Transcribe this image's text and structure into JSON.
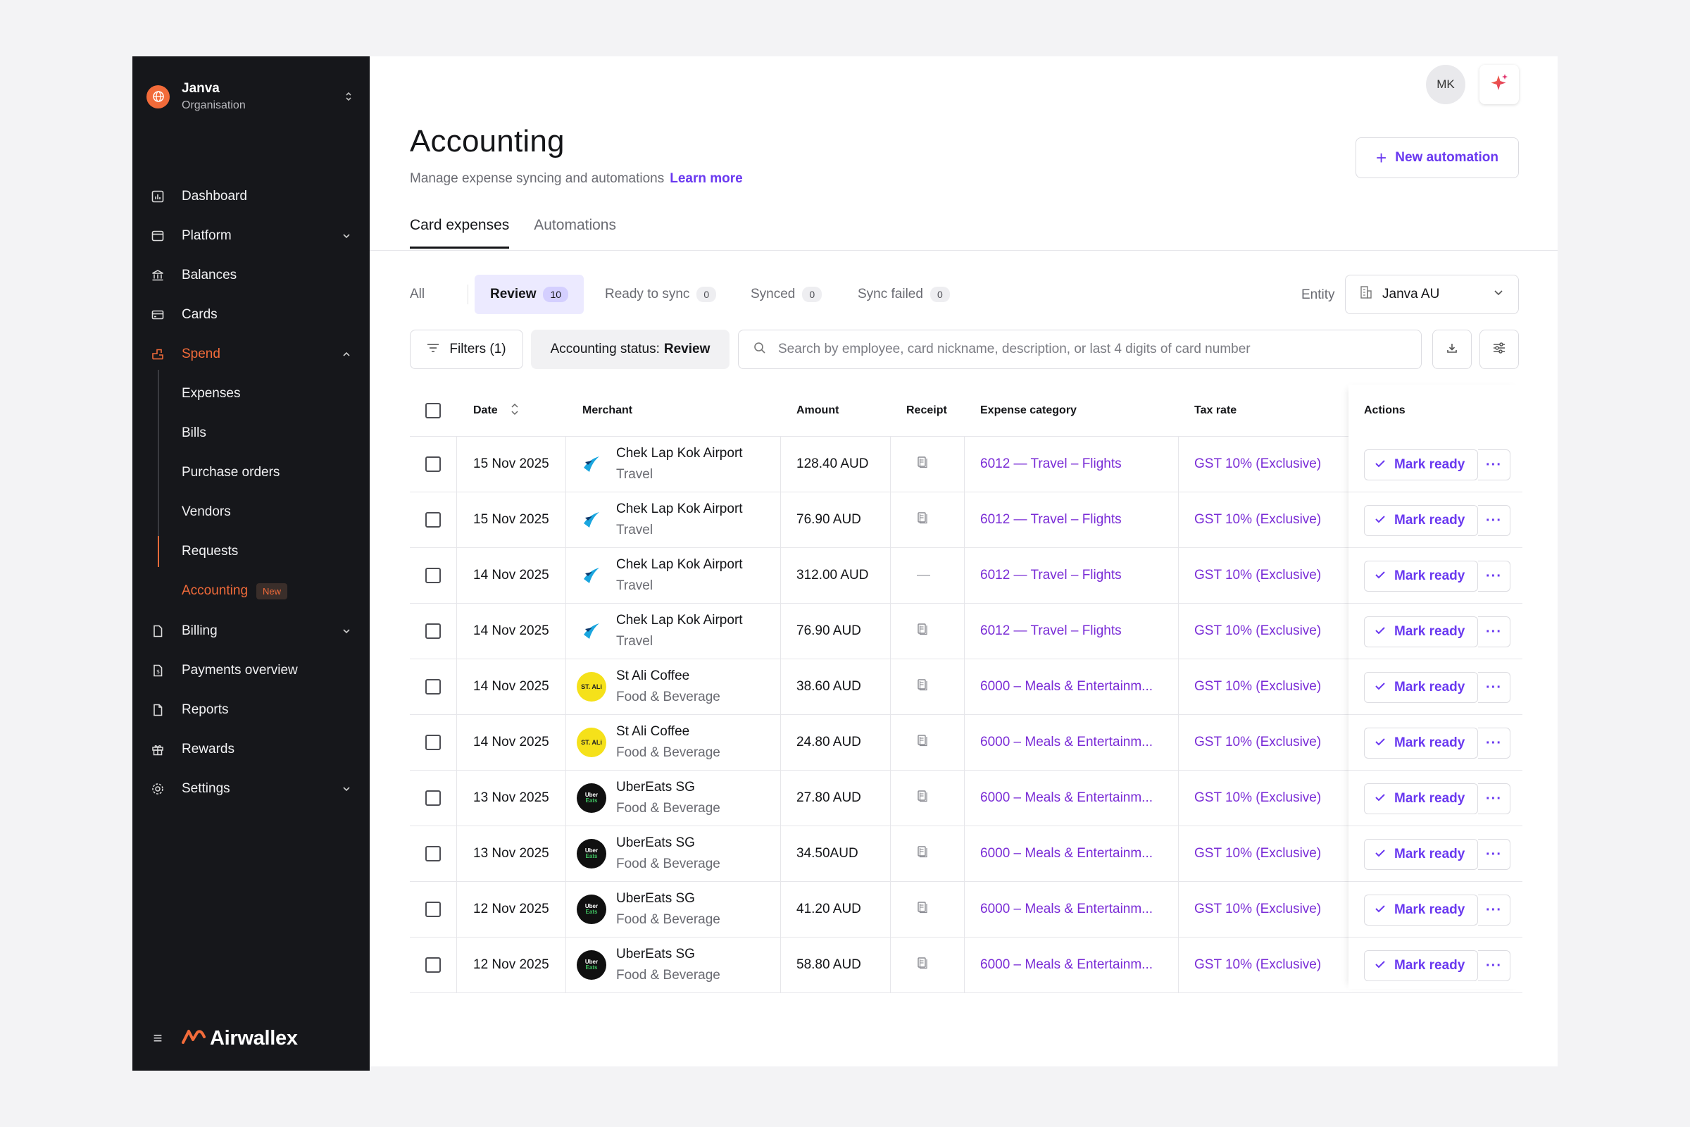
{
  "org": {
    "name": "Janva",
    "sub": "Organisation"
  },
  "nav": {
    "dashboard": "Dashboard",
    "platform": "Platform",
    "balances": "Balances",
    "cards": "Cards",
    "spend": "Spend",
    "spend_items": [
      "Expenses",
      "Bills",
      "Purchase orders",
      "Vendors",
      "Requests",
      "Accounting"
    ],
    "new_badge": "New",
    "billing": "Billing",
    "payments_overview": "Payments overview",
    "reports": "Reports",
    "rewards": "Rewards",
    "settings": "Settings"
  },
  "brand": {
    "menu_glyph": "≡",
    "wordmark": "Airwallex"
  },
  "header": {
    "avatar": "MK",
    "title": "Accounting",
    "subtitle": "Manage expense syncing and automations",
    "learn_more": "Learn more",
    "new_automation": "New automation",
    "plus": "+"
  },
  "tabs": [
    "Card expenses",
    "Automations"
  ],
  "status_tabs": [
    {
      "label": "All",
      "count": null
    },
    {
      "label": "Review",
      "count": "10"
    },
    {
      "label": "Ready to sync",
      "count": "0"
    },
    {
      "label": "Synced",
      "count": "0"
    },
    {
      "label": "Sync failed",
      "count": "0"
    }
  ],
  "entity": {
    "label": "Entity",
    "value": "Janva AU"
  },
  "toolbar": {
    "filters": "Filters (1)",
    "status_prefix": "Accounting status:",
    "status_value": "Review",
    "search_placeholder": "Search by employee, card nickname, description, or last 4 digits of card number"
  },
  "table": {
    "headers": {
      "date": "Date",
      "merchant": "Merchant",
      "amount": "Amount",
      "receipt": "Receipt",
      "category": "Expense category",
      "tax": "Tax rate",
      "actions": "Actions"
    },
    "mark_ready": "Mark ready",
    "more": "···",
    "rows": [
      {
        "date": "15 Nov 2025",
        "merchant": "Chek Lap Kok Airport",
        "mcat": "Travel",
        "logo": "airport",
        "amount": "128.40 AUD",
        "receipt": true,
        "category": "6012 — Travel – Flights",
        "tax": "GST 10% (Exclusive)"
      },
      {
        "date": "15 Nov 2025",
        "merchant": "Chek Lap Kok Airport",
        "mcat": "Travel",
        "logo": "airport",
        "amount": "76.90 AUD",
        "receipt": true,
        "category": "6012 — Travel – Flights",
        "tax": "GST 10% (Exclusive)"
      },
      {
        "date": "14 Nov 2025",
        "merchant": "Chek Lap Kok Airport",
        "mcat": "Travel",
        "logo": "airport",
        "amount": "312.00 AUD",
        "receipt": false,
        "category": "6012 — Travel – Flights",
        "tax": "GST 10% (Exclusive)"
      },
      {
        "date": "14 Nov 2025",
        "merchant": "Chek Lap Kok Airport",
        "mcat": "Travel",
        "logo": "airport",
        "amount": "76.90 AUD",
        "receipt": true,
        "category": "6012 — Travel – Flights",
        "tax": "GST 10% (Exclusive)"
      },
      {
        "date": "14 Nov 2025",
        "merchant": "St Ali Coffee",
        "mcat": "Food & Beverage",
        "logo": "stali",
        "amount": "38.60 AUD",
        "receipt": true,
        "category": "6000 – Meals & Entertainm...",
        "tax": "GST 10% (Exclusive)"
      },
      {
        "date": "14 Nov 2025",
        "merchant": "St Ali Coffee",
        "mcat": "Food & Beverage",
        "logo": "stali",
        "amount": "24.80 AUD",
        "receipt": true,
        "category": "6000 – Meals & Entertainm...",
        "tax": "GST 10% (Exclusive)"
      },
      {
        "date": "13 Nov 2025",
        "merchant": "UberEats SG",
        "mcat": "Food & Beverage",
        "logo": "uber",
        "amount": "27.80 AUD",
        "receipt": true,
        "category": "6000 – Meals & Entertainm...",
        "tax": "GST 10% (Exclusive)"
      },
      {
        "date": "13 Nov 2025",
        "merchant": "UberEats SG",
        "mcat": "Food & Beverage",
        "logo": "uber",
        "amount": "34.50AUD",
        "receipt": true,
        "category": "6000 – Meals & Entertainm...",
        "tax": "GST 10% (Exclusive)"
      },
      {
        "date": "12 Nov 2025",
        "merchant": "UberEats SG",
        "mcat": "Food & Beverage",
        "logo": "uber",
        "amount": "41.20 AUD",
        "receipt": true,
        "category": "6000 – Meals & Entertainm...",
        "tax": "GST 10% (Exclusive)"
      },
      {
        "date": "12 Nov 2025",
        "merchant": "UberEats SG",
        "mcat": "Food & Beverage",
        "logo": "uber",
        "amount": "58.80 AUD",
        "receipt": true,
        "category": "6000 – Meals & Entertainm...",
        "tax": "GST 10% (Exclusive)"
      }
    ]
  },
  "logo_text": {
    "stali": "ST. ALi",
    "uber_top": "Uber",
    "uber_bottom": "Eats"
  },
  "receipt_dash": "—",
  "colors": {
    "accent": "#6a39f0",
    "brand_orange": "#f26b3a",
    "link_purple": "#7a2cd6",
    "sidebar_bg": "#16171b"
  }
}
